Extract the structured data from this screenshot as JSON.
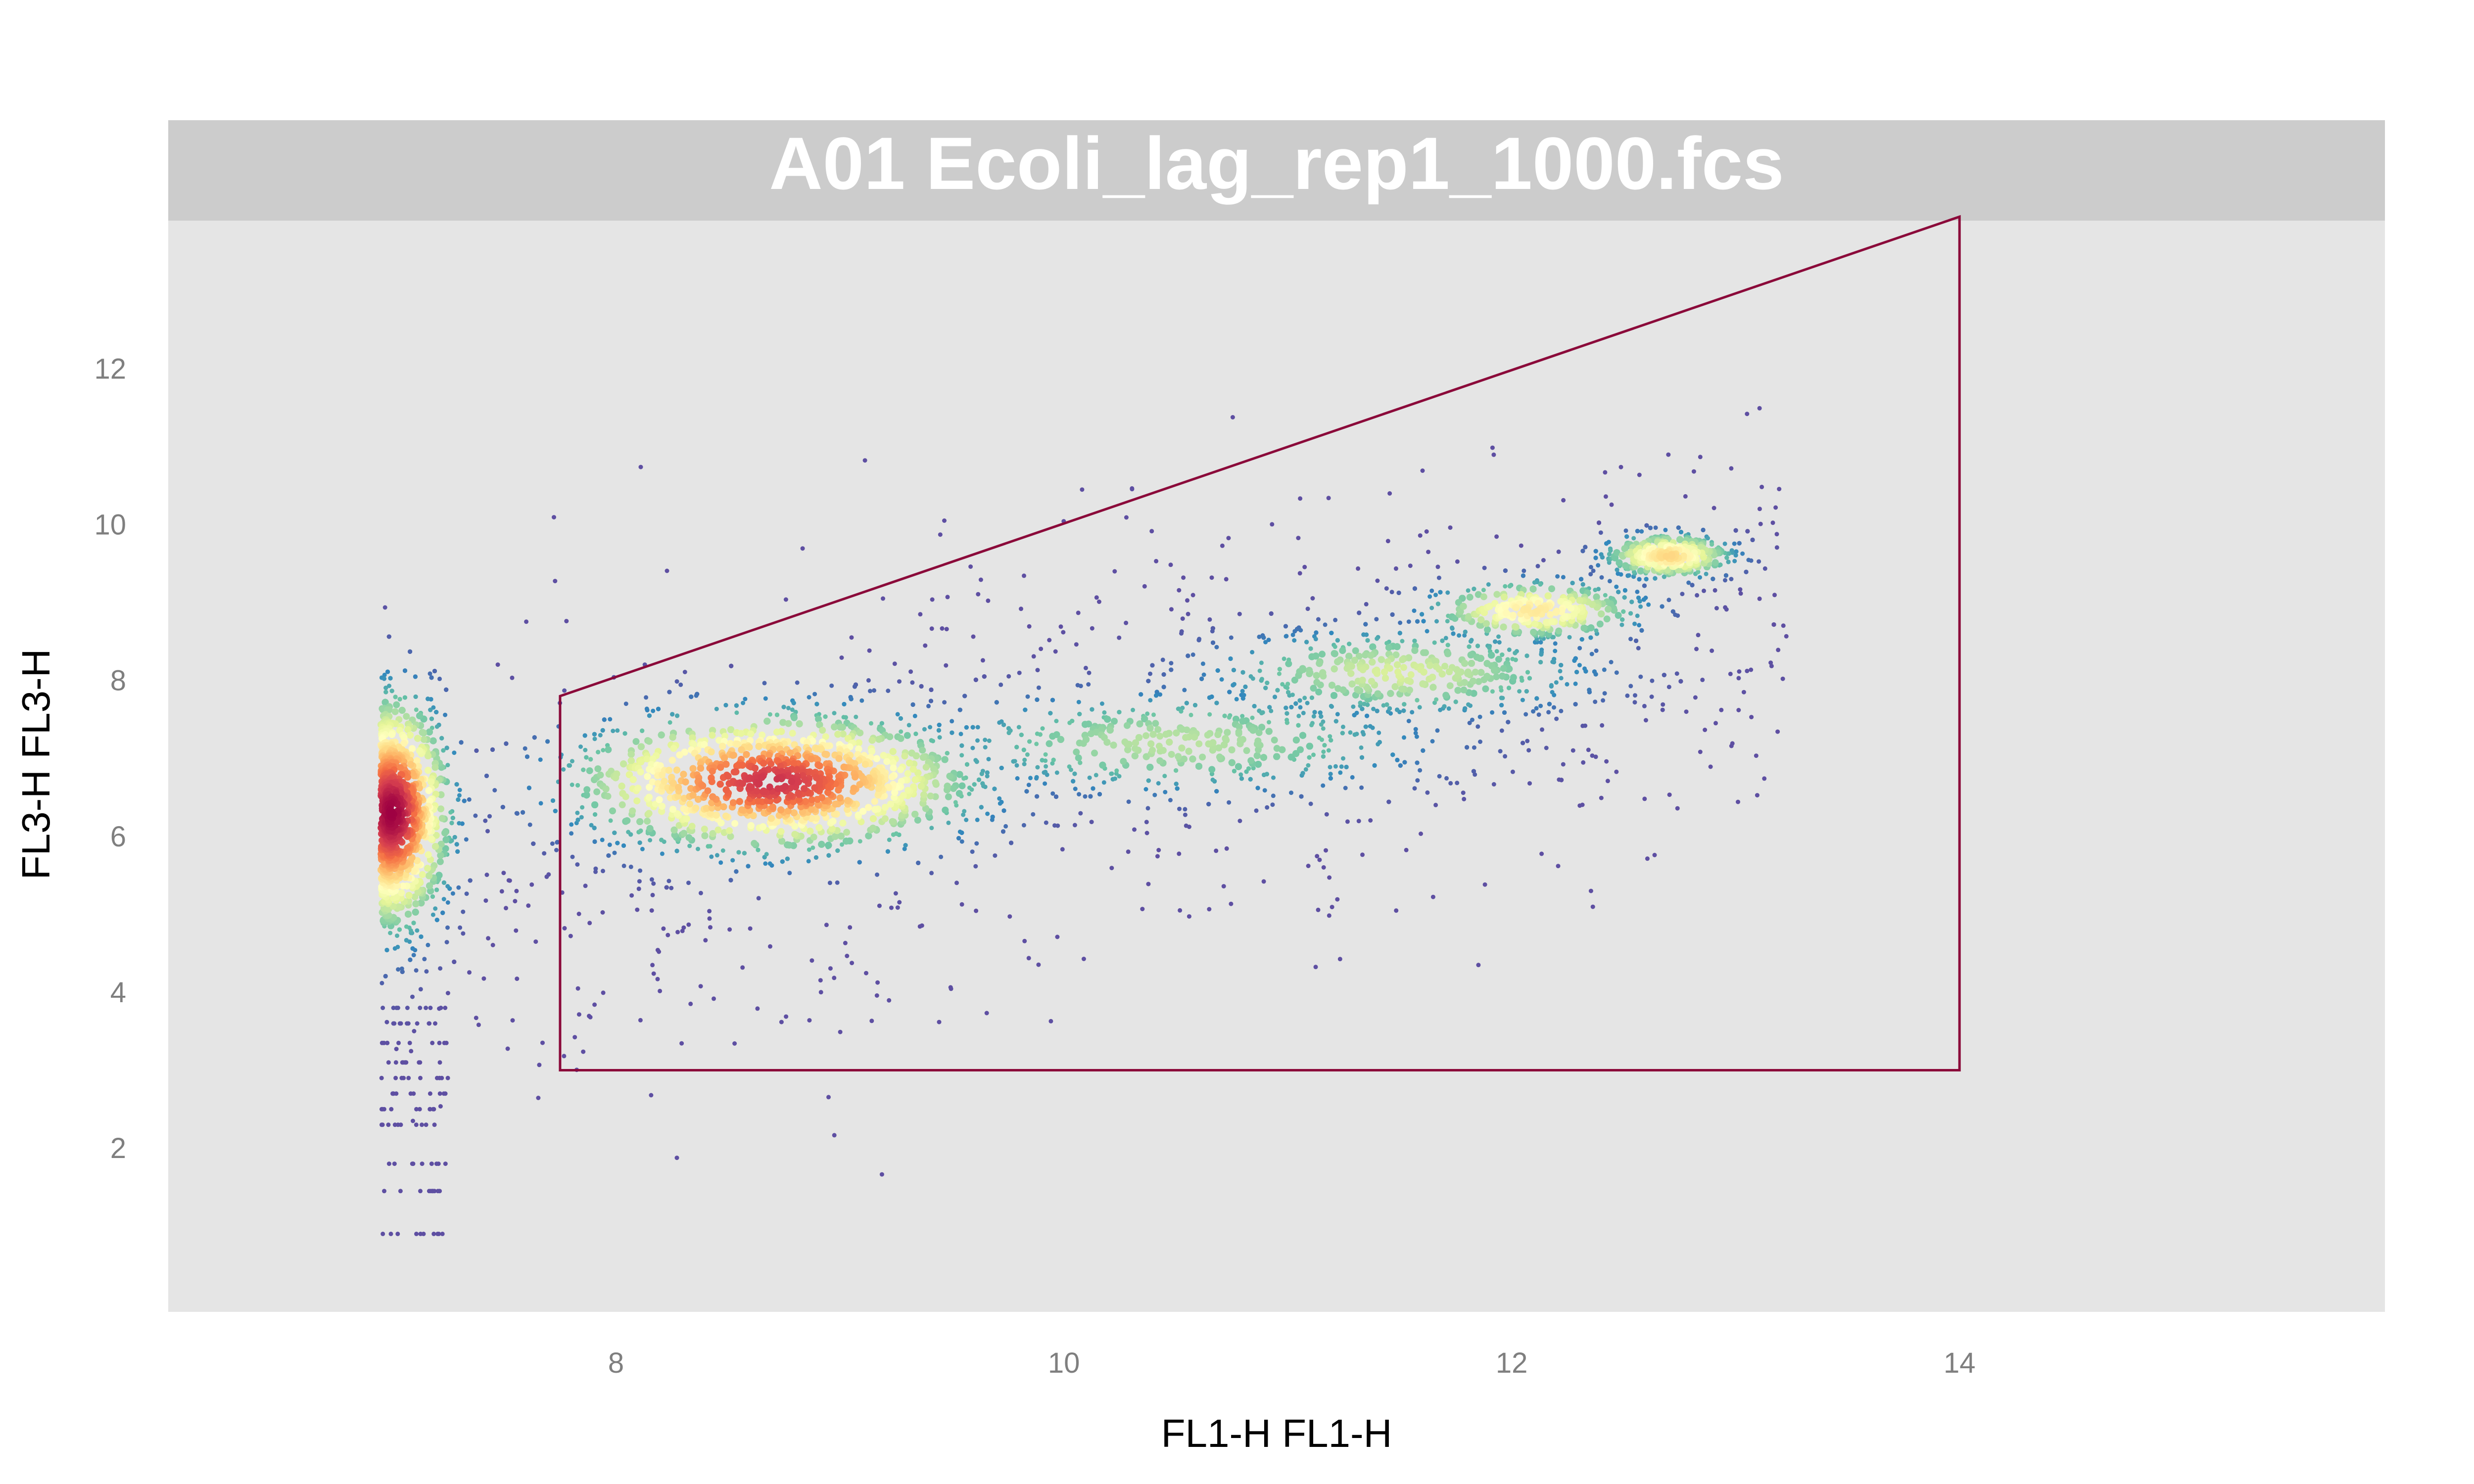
{
  "chart_data": {
    "type": "scatter",
    "title": "A01 Ecoli_lag_rep1_1000.fcs",
    "xlabel": "FL1-H FL1-H",
    "ylabel": "FL3-H FL3-H",
    "xlim": [
      6.0,
      15.9
    ],
    "ylim": [
      -0.1,
      13.9
    ],
    "xticks": [
      8,
      10,
      12,
      14
    ],
    "yticks": [
      2,
      4,
      6,
      8,
      10,
      12
    ],
    "grid": false,
    "legend": "none",
    "panel_background": "#e5e5e5",
    "strip_background": "#cccccc",
    "density_colormap": [
      "#5e4fa2",
      "#3288bd",
      "#66c2a5",
      "#abdda4",
      "#e6f598",
      "#ffffbf",
      "#fee08b",
      "#fdae61",
      "#f46d43",
      "#d53e4f",
      "#9e0142"
    ],
    "populations": [
      {
        "x": 7.0,
        "y": 6.3,
        "sx": 0.13,
        "sy": 0.75,
        "weight": 0.3,
        "note_peak_density": 1.0
      },
      {
        "x": 8.7,
        "y": 6.7,
        "sx": 0.45,
        "sy": 0.45,
        "weight": 0.32,
        "note_peak_density": 0.9
      },
      {
        "x": 10.5,
        "y": 7.2,
        "sx": 0.6,
        "sy": 0.35,
        "weight": 0.1,
        "note_peak_density": 0.25
      },
      {
        "x": 11.5,
        "y": 8.1,
        "sx": 0.45,
        "sy": 0.3,
        "weight": 0.1,
        "note_peak_density": 0.3
      },
      {
        "x": 12.1,
        "y": 8.9,
        "sx": 0.25,
        "sy": 0.2,
        "weight": 0.09,
        "note_peak_density": 0.5
      },
      {
        "x": 12.7,
        "y": 9.6,
        "sx": 0.15,
        "sy": 0.15,
        "weight": 0.09,
        "note_peak_density": 0.55
      }
    ],
    "gate": {
      "vertices": [
        [
          7.75,
          3.0
        ],
        [
          7.75,
          7.8
        ],
        [
          14.0,
          13.95
        ],
        [
          14.0,
          3.0
        ]
      ],
      "color": "#8b0a3a"
    }
  }
}
